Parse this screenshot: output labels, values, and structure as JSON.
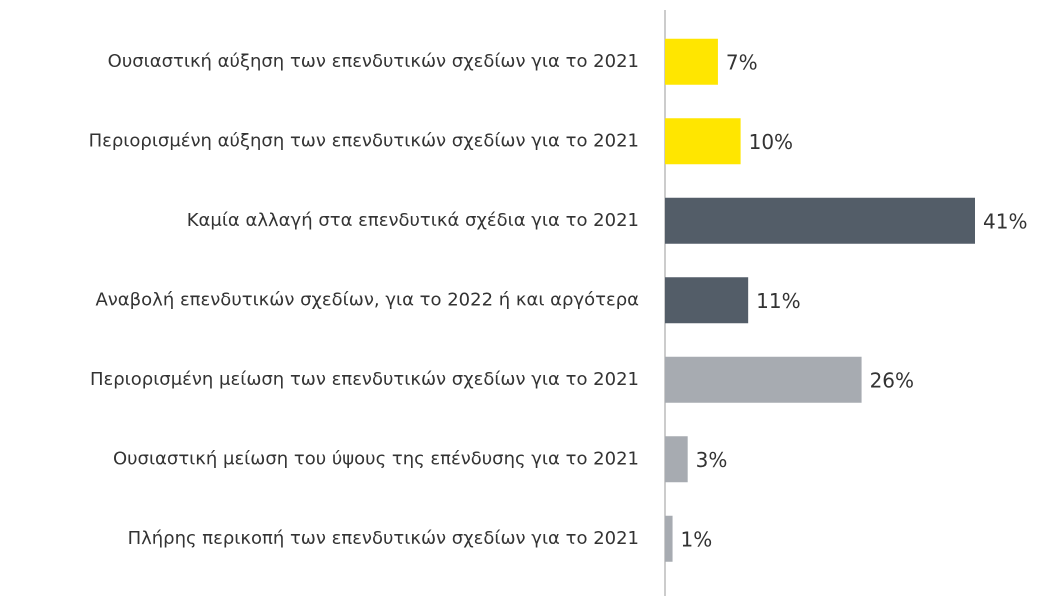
{
  "chart_data": {
    "type": "bar",
    "orientation": "horizontal",
    "categories": [
      "Ουσιαστική αύξηση των επενδυτικών σχεδίων για το 2021",
      "Περιορισμένη αύξηση των επενδυτικών σχεδίων για το 2021",
      "Καμία αλλαγή στα επενδυτικά σχέδια για το 2021",
      "Αναβολή επενδυτικών σχεδίων, για το 2022 ή και αργότερα",
      "Περιορισμένη μείωση των επενδυτικών σχεδίων για το 2021",
      "Ουσιαστική μείωση του ύψους της επένδυσης για το 2021",
      "Πλήρης περικοπή των επενδυτικών σχεδίων για το 2021"
    ],
    "values": [
      7,
      10,
      41,
      11,
      26,
      3,
      1
    ],
    "value_labels": [
      "7%",
      "10%",
      "41%",
      "11%",
      "26%",
      "3%",
      "1%"
    ],
    "colors": [
      "#ffe600",
      "#ffe600",
      "#535d68",
      "#535d68",
      "#a7abb1",
      "#a7abb1",
      "#a7abb1"
    ]
  }
}
